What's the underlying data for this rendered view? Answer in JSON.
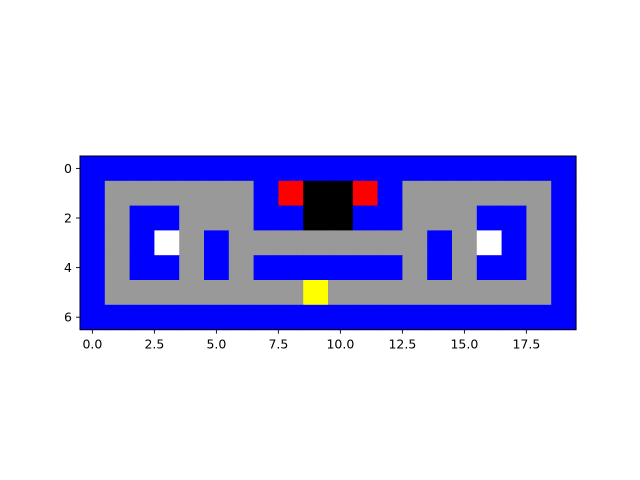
{
  "palette": {
    "W": "#0000ff",
    "F": "#999999",
    "R": "#ff0000",
    "K": "#000000",
    "P": "#ffffff",
    "Y": "#ffff00"
  },
  "legend_of_codes": {
    "W": "wall",
    "F": "floor",
    "R": "ghost",
    "K": "ghost-house",
    "P": "power-pellet",
    "Y": "pacman"
  },
  "chart_data": {
    "type": "heatmap",
    "title": "",
    "xlabel": "",
    "ylabel": "",
    "xlim": [
      -0.5,
      19.5
    ],
    "ylim": [
      6.5,
      -0.5
    ],
    "x_ticks": [
      {
        "value": 0.0,
        "label": "0.0"
      },
      {
        "value": 2.5,
        "label": "2.5"
      },
      {
        "value": 5.0,
        "label": "5.0"
      },
      {
        "value": 7.5,
        "label": "7.5"
      },
      {
        "value": 10.0,
        "label": "10.0"
      },
      {
        "value": 12.5,
        "label": "12.5"
      },
      {
        "value": 15.0,
        "label": "15.0"
      },
      {
        "value": 17.5,
        "label": "17.5"
      }
    ],
    "y_ticks": [
      {
        "value": 0,
        "label": "0"
      },
      {
        "value": 2,
        "label": "2"
      },
      {
        "value": 4,
        "label": "4"
      },
      {
        "value": 6,
        "label": "6"
      }
    ],
    "grid_rows": [
      "WWWWWWWWWWWWWWWWWWWW",
      "WFFFFFFWRKKRWFFFFFFW",
      "WFWWFFFWWKKWWFFFWWFW",
      "WFWPFWFFFFFFFFWFPWFW",
      "WFWWFWFWWWWWWFWFWWFW",
      "WFFFFFFFFYFFFFFFFFFW",
      "WWWWWWWWWWWWWWWWWWWW"
    ]
  }
}
